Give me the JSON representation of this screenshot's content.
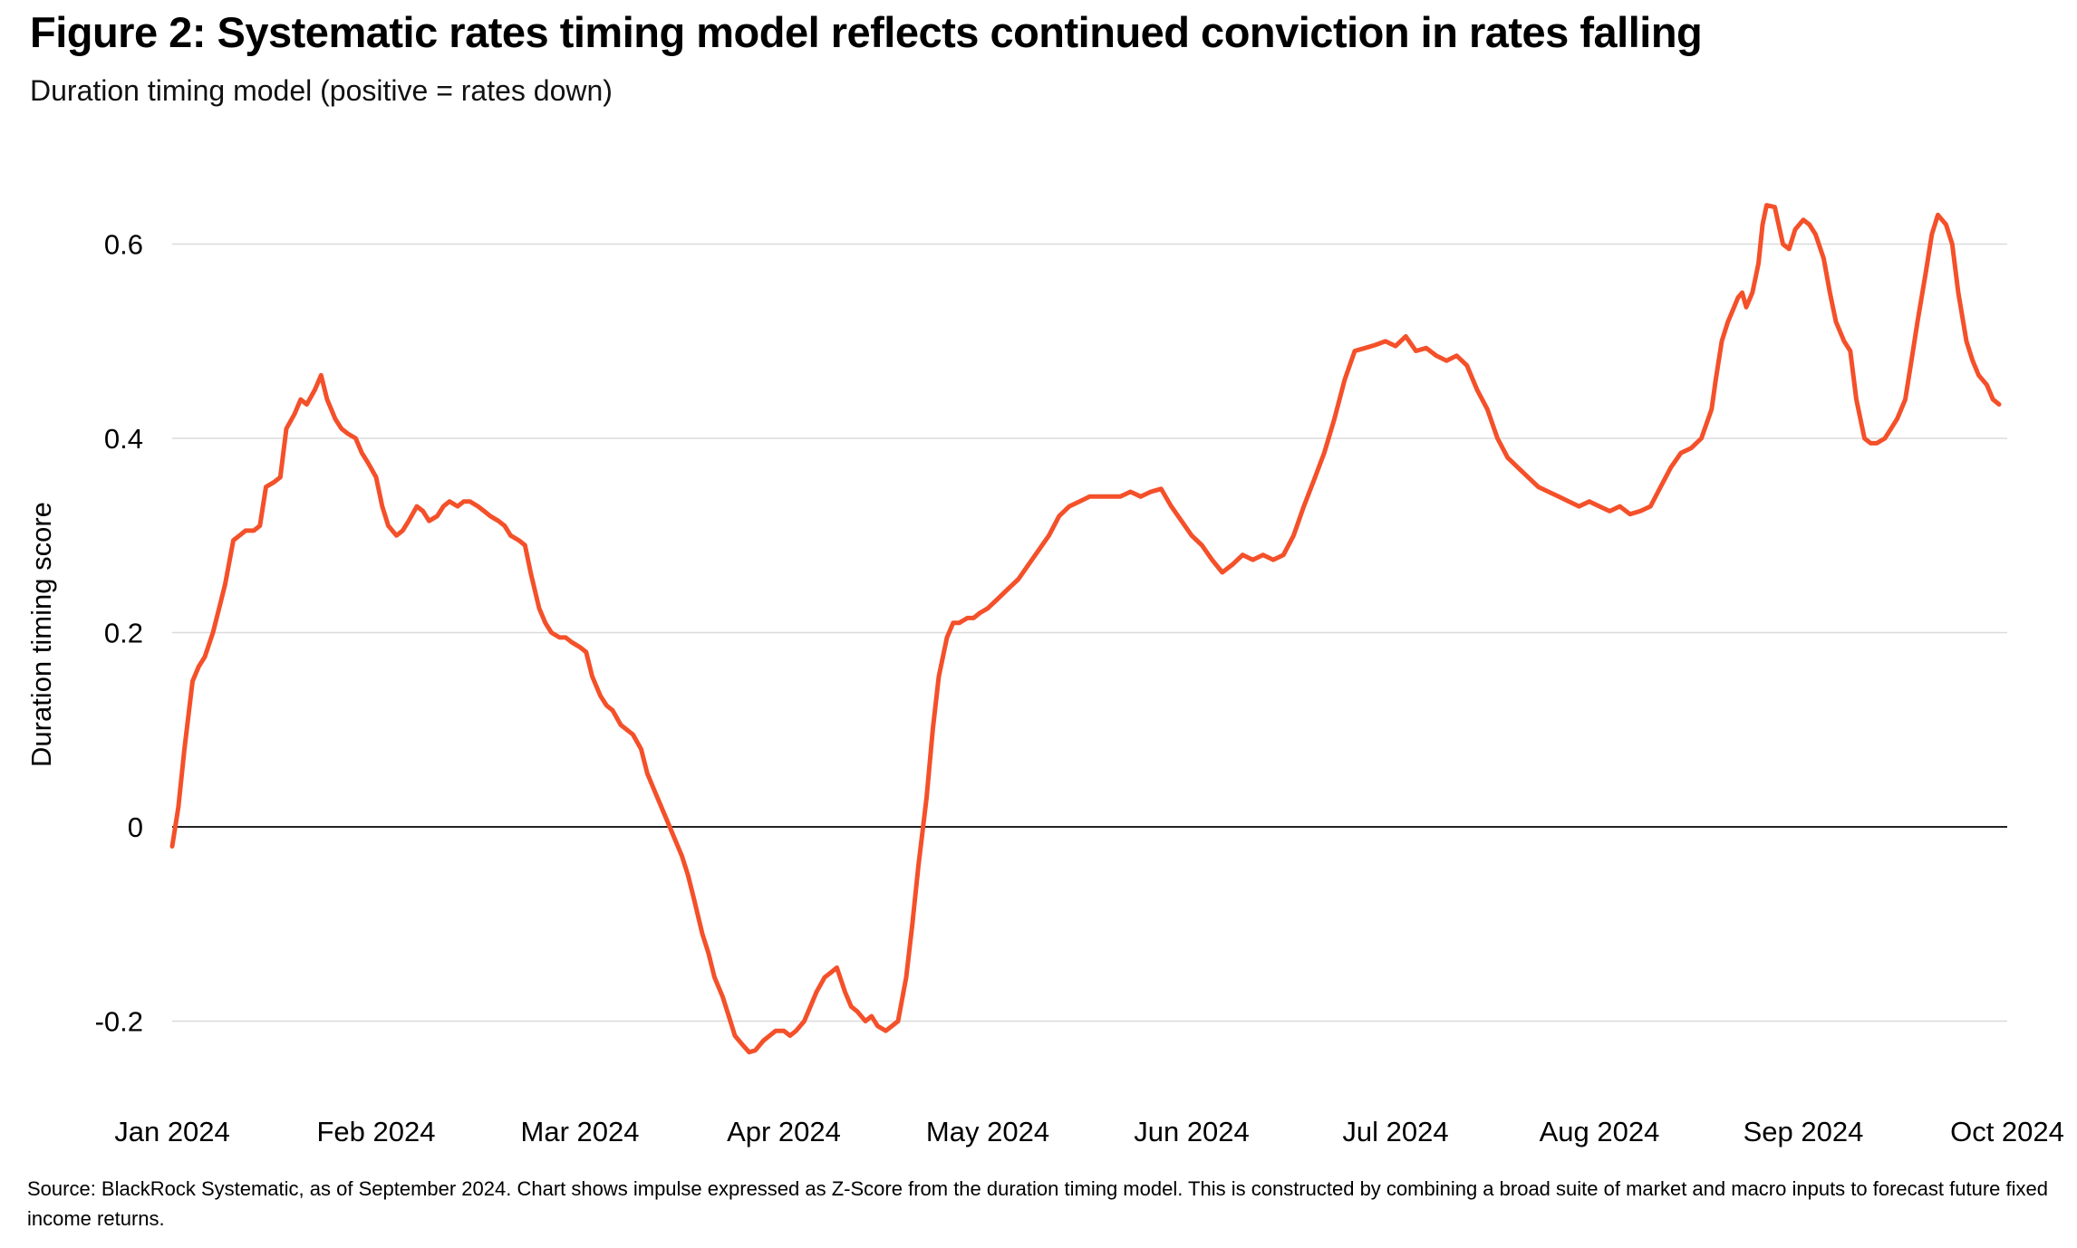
{
  "figure": {
    "title": "Figure 2: Systematic rates timing model reflects continued conviction in rates falling",
    "subtitle": "Duration timing model (positive = rates down)",
    "source": "Source: BlackRock Systematic, as of September 2024. Chart shows impulse expressed as Z-Score from the duration timing model. This is constructed by combining a broad suite of market and macro inputs to forecast future fixed income returns."
  },
  "chart_data": {
    "type": "line",
    "title": "Figure 2: Systematic rates timing model reflects continued conviction in rates falling",
    "subtitle": "Duration timing model (positive = rates down)",
    "xlabel": "",
    "ylabel": "Duration timing score",
    "x_unit": "months since Jan 1 2024 (0 = Jan 2024, 9 = Oct 2024)",
    "xlim": [
      0,
      9
    ],
    "ylim": [
      -0.31,
      0.7
    ],
    "x_tick_labels": [
      "Jan 2024",
      "Feb 2024",
      "Mar 2024",
      "Apr 2024",
      "May 2024",
      "Jun 2024",
      "Jul 2024",
      "Aug 2024",
      "Sep 2024",
      "Oct 2024"
    ],
    "y_ticks": [
      0.6,
      0.4,
      0.2,
      0,
      -0.2
    ],
    "y_tick_labels": [
      "0.6",
      "0.4",
      "0.2",
      "0",
      "-0.2"
    ],
    "grid": "horizontal only",
    "legend": "none",
    "line_color": "#F4502A",
    "grid_color": "#DBDBDB",
    "zero_line_color": "#222222",
    "series": [
      {
        "name": "Duration timing model (Z-Score impulse)",
        "points": [
          [
            0,
            -0.02
          ],
          [
            0.03,
            0.02
          ],
          [
            0.06,
            0.08
          ],
          [
            0.1,
            0.15
          ],
          [
            0.13,
            0.165
          ],
          [
            0.16,
            0.175
          ],
          [
            0.2,
            0.2
          ],
          [
            0.23,
            0.225
          ],
          [
            0.26,
            0.25
          ],
          [
            0.3,
            0.295
          ],
          [
            0.33,
            0.3
          ],
          [
            0.36,
            0.305
          ],
          [
            0.4,
            0.305
          ],
          [
            0.43,
            0.31
          ],
          [
            0.46,
            0.35
          ],
          [
            0.5,
            0.355
          ],
          [
            0.53,
            0.36
          ],
          [
            0.56,
            0.41
          ],
          [
            0.6,
            0.425
          ],
          [
            0.63,
            0.44
          ],
          [
            0.66,
            0.435
          ],
          [
            0.7,
            0.45
          ],
          [
            0.73,
            0.465
          ],
          [
            0.76,
            0.44
          ],
          [
            0.8,
            0.42
          ],
          [
            0.83,
            0.41
          ],
          [
            0.86,
            0.405
          ],
          [
            0.9,
            0.4
          ],
          [
            0.93,
            0.385
          ],
          [
            0.96,
            0.375
          ],
          [
            1,
            0.36
          ],
          [
            1.03,
            0.33
          ],
          [
            1.06,
            0.31
          ],
          [
            1.1,
            0.3
          ],
          [
            1.13,
            0.305
          ],
          [
            1.16,
            0.315
          ],
          [
            1.2,
            0.33
          ],
          [
            1.23,
            0.325
          ],
          [
            1.26,
            0.315
          ],
          [
            1.3,
            0.32
          ],
          [
            1.33,
            0.33
          ],
          [
            1.36,
            0.335
          ],
          [
            1.4,
            0.33
          ],
          [
            1.43,
            0.335
          ],
          [
            1.46,
            0.335
          ],
          [
            1.5,
            0.33
          ],
          [
            1.53,
            0.325
          ],
          [
            1.56,
            0.32
          ],
          [
            1.6,
            0.315
          ],
          [
            1.63,
            0.31
          ],
          [
            1.66,
            0.3
          ],
          [
            1.7,
            0.295
          ],
          [
            1.73,
            0.29
          ],
          [
            1.76,
            0.26
          ],
          [
            1.8,
            0.225
          ],
          [
            1.83,
            0.21
          ],
          [
            1.86,
            0.2
          ],
          [
            1.9,
            0.195
          ],
          [
            1.93,
            0.195
          ],
          [
            1.96,
            0.19
          ],
          [
            2,
            0.185
          ],
          [
            2.03,
            0.18
          ],
          [
            2.06,
            0.155
          ],
          [
            2.1,
            0.135
          ],
          [
            2.13,
            0.125
          ],
          [
            2.16,
            0.12
          ],
          [
            2.2,
            0.105
          ],
          [
            2.23,
            0.1
          ],
          [
            2.26,
            0.095
          ],
          [
            2.3,
            0.08
          ],
          [
            2.33,
            0.055
          ],
          [
            2.36,
            0.04
          ],
          [
            2.4,
            0.02
          ],
          [
            2.43,
            0.005
          ],
          [
            2.46,
            -0.01
          ],
          [
            2.5,
            -0.03
          ],
          [
            2.53,
            -0.05
          ],
          [
            2.56,
            -0.075
          ],
          [
            2.6,
            -0.11
          ],
          [
            2.63,
            -0.13
          ],
          [
            2.66,
            -0.155
          ],
          [
            2.7,
            -0.175
          ],
          [
            2.73,
            -0.195
          ],
          [
            2.76,
            -0.215
          ],
          [
            2.8,
            -0.225
          ],
          [
            2.83,
            -0.232
          ],
          [
            2.86,
            -0.23
          ],
          [
            2.9,
            -0.22
          ],
          [
            2.93,
            -0.215
          ],
          [
            2.96,
            -0.21
          ],
          [
            3,
            -0.21
          ],
          [
            3.03,
            -0.215
          ],
          [
            3.06,
            -0.21
          ],
          [
            3.1,
            -0.2
          ],
          [
            3.13,
            -0.185
          ],
          [
            3.16,
            -0.17
          ],
          [
            3.2,
            -0.155
          ],
          [
            3.23,
            -0.15
          ],
          [
            3.26,
            -0.145
          ],
          [
            3.3,
            -0.17
          ],
          [
            3.33,
            -0.185
          ],
          [
            3.36,
            -0.19
          ],
          [
            3.4,
            -0.2
          ],
          [
            3.43,
            -0.195
          ],
          [
            3.46,
            -0.205
          ],
          [
            3.5,
            -0.21
          ],
          [
            3.53,
            -0.205
          ],
          [
            3.56,
            -0.2
          ],
          [
            3.6,
            -0.155
          ],
          [
            3.63,
            -0.1
          ],
          [
            3.66,
            -0.04
          ],
          [
            3.7,
            0.03
          ],
          [
            3.73,
            0.1
          ],
          [
            3.76,
            0.155
          ],
          [
            3.8,
            0.195
          ],
          [
            3.83,
            0.21
          ],
          [
            3.86,
            0.21
          ],
          [
            3.9,
            0.215
          ],
          [
            3.93,
            0.215
          ],
          [
            3.96,
            0.22
          ],
          [
            4,
            0.225
          ],
          [
            4.05,
            0.235
          ],
          [
            4.1,
            0.245
          ],
          [
            4.15,
            0.255
          ],
          [
            4.2,
            0.27
          ],
          [
            4.25,
            0.285
          ],
          [
            4.3,
            0.3
          ],
          [
            4.35,
            0.32
          ],
          [
            4.4,
            0.33
          ],
          [
            4.45,
            0.335
          ],
          [
            4.5,
            0.34
          ],
          [
            4.55,
            0.34
          ],
          [
            4.6,
            0.34
          ],
          [
            4.65,
            0.34
          ],
          [
            4.7,
            0.345
          ],
          [
            4.75,
            0.34
          ],
          [
            4.8,
            0.345
          ],
          [
            4.85,
            0.348
          ],
          [
            4.9,
            0.33
          ],
          [
            4.95,
            0.315
          ],
          [
            5,
            0.3
          ],
          [
            5.05,
            0.29
          ],
          [
            5.1,
            0.275
          ],
          [
            5.15,
            0.262
          ],
          [
            5.2,
            0.27
          ],
          [
            5.25,
            0.28
          ],
          [
            5.3,
            0.275
          ],
          [
            5.35,
            0.28
          ],
          [
            5.4,
            0.275
          ],
          [
            5.45,
            0.28
          ],
          [
            5.5,
            0.3
          ],
          [
            5.55,
            0.33
          ],
          [
            5.6,
            0.357
          ],
          [
            5.65,
            0.385
          ],
          [
            5.7,
            0.42
          ],
          [
            5.75,
            0.46
          ],
          [
            5.8,
            0.49
          ],
          [
            5.85,
            0.493
          ],
          [
            5.9,
            0.496
          ],
          [
            5.95,
            0.5
          ],
          [
            6,
            0.495
          ],
          [
            6.05,
            0.505
          ],
          [
            6.1,
            0.49
          ],
          [
            6.15,
            0.493
          ],
          [
            6.2,
            0.485
          ],
          [
            6.25,
            0.48
          ],
          [
            6.3,
            0.485
          ],
          [
            6.35,
            0.475
          ],
          [
            6.4,
            0.45
          ],
          [
            6.45,
            0.43
          ],
          [
            6.5,
            0.4
          ],
          [
            6.55,
            0.38
          ],
          [
            6.6,
            0.37
          ],
          [
            6.65,
            0.36
          ],
          [
            6.7,
            0.35
          ],
          [
            6.75,
            0.345
          ],
          [
            6.8,
            0.34
          ],
          [
            6.85,
            0.335
          ],
          [
            6.9,
            0.33
          ],
          [
            6.95,
            0.335
          ],
          [
            7,
            0.33
          ],
          [
            7.05,
            0.325
          ],
          [
            7.1,
            0.33
          ],
          [
            7.15,
            0.322
          ],
          [
            7.2,
            0.325
          ],
          [
            7.25,
            0.33
          ],
          [
            7.3,
            0.35
          ],
          [
            7.35,
            0.37
          ],
          [
            7.4,
            0.385
          ],
          [
            7.45,
            0.39
          ],
          [
            7.5,
            0.4
          ],
          [
            7.55,
            0.43
          ],
          [
            7.57,
            0.46
          ],
          [
            7.6,
            0.5
          ],
          [
            7.63,
            0.52
          ],
          [
            7.65,
            0.53
          ],
          [
            7.68,
            0.545
          ],
          [
            7.7,
            0.55
          ],
          [
            7.72,
            0.535
          ],
          [
            7.75,
            0.55
          ],
          [
            7.78,
            0.58
          ],
          [
            7.8,
            0.62
          ],
          [
            7.82,
            0.64
          ],
          [
            7.86,
            0.638
          ],
          [
            7.9,
            0.6
          ],
          [
            7.93,
            0.595
          ],
          [
            7.96,
            0.615
          ],
          [
            8,
            0.625
          ],
          [
            8.03,
            0.62
          ],
          [
            8.06,
            0.61
          ],
          [
            8.1,
            0.585
          ],
          [
            8.13,
            0.55
          ],
          [
            8.16,
            0.52
          ],
          [
            8.2,
            0.5
          ],
          [
            8.23,
            0.49
          ],
          [
            8.26,
            0.44
          ],
          [
            8.3,
            0.4
          ],
          [
            8.33,
            0.395
          ],
          [
            8.36,
            0.395
          ],
          [
            8.4,
            0.4
          ],
          [
            8.43,
            0.41
          ],
          [
            8.46,
            0.42
          ],
          [
            8.5,
            0.44
          ],
          [
            8.53,
            0.48
          ],
          [
            8.56,
            0.52
          ],
          [
            8.6,
            0.57
          ],
          [
            8.63,
            0.61
          ],
          [
            8.66,
            0.63
          ],
          [
            8.7,
            0.62
          ],
          [
            8.73,
            0.6
          ],
          [
            8.76,
            0.55
          ],
          [
            8.8,
            0.5
          ],
          [
            8.83,
            0.48
          ],
          [
            8.86,
            0.465
          ],
          [
            8.9,
            0.455
          ],
          [
            8.93,
            0.44
          ],
          [
            8.96,
            0.435
          ]
        ]
      }
    ]
  }
}
